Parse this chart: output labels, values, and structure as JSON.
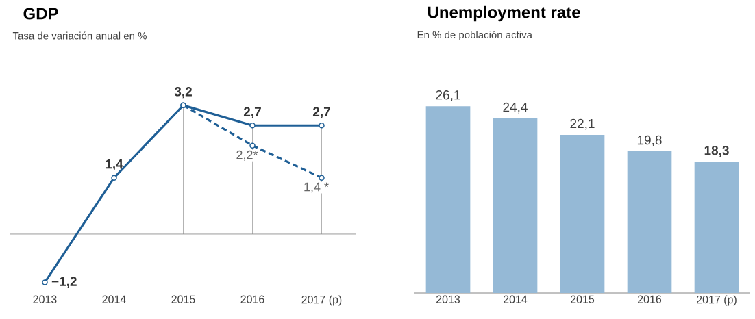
{
  "chart_data": [
    {
      "type": "line",
      "title": "GDP",
      "subtitle": "Tasa de variación anual en %",
      "categories": [
        "2013",
        "2014",
        "2015",
        "2016",
        "2017 (p)"
      ],
      "marker": "circle",
      "series": [
        {
          "color": "#1f5f96",
          "line_style": "solid",
          "values": [
            -1.2,
            1.4,
            3.2,
            2.7,
            2.7
          ],
          "value_labels": [
            "−1,2",
            "1,4",
            "3,2",
            "2,7",
            "2,7"
          ]
        },
        {
          "color": "#1f5f96",
          "line_style": "dashed",
          "values": [
            null,
            null,
            3.2,
            2.2,
            1.4
          ],
          "value_labels": [
            null,
            null,
            null,
            "2,2*",
            "1,4 *"
          ]
        }
      ]
    },
    {
      "type": "bar",
      "title": "Unemployment rate",
      "subtitle": "En % de población activa",
      "categories": [
        "2013",
        "2014",
        "2015",
        "2016",
        "2017 (p)"
      ],
      "color": "#95b9d6",
      "values": [
        26.1,
        24.4,
        22.1,
        19.8,
        18.3
      ],
      "value_labels": [
        "26,1",
        "24,4",
        "22,1",
        "19,8",
        "**18,3**"
      ]
    }
  ]
}
